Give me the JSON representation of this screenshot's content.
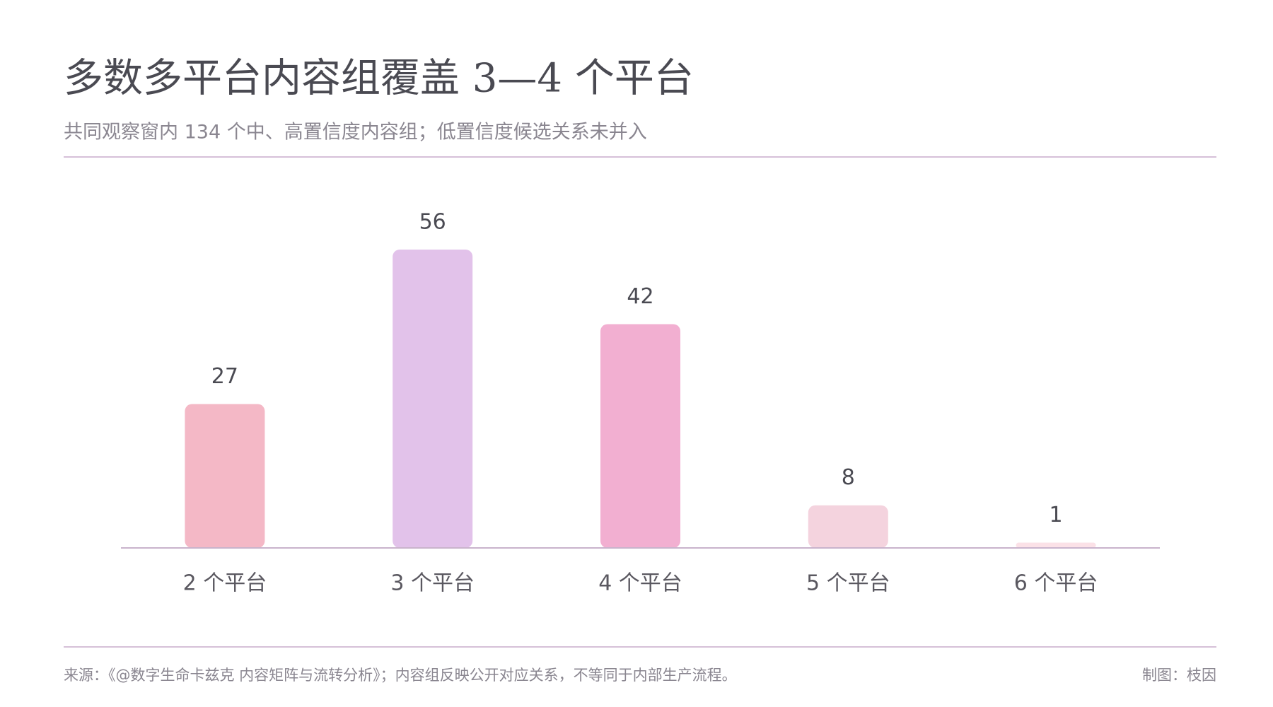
{
  "chart_data": {
    "type": "bar",
    "title": "多数多平台内容组覆盖 3—4 个平台",
    "subtitle": "共同观察窗内 134 个中、高置信度内容组；低置信度候选关系未并入",
    "categories": [
      "2 个平台",
      "3 个平台",
      "4 个平台",
      "5 个平台",
      "6 个平台"
    ],
    "values": [
      27,
      56,
      42,
      8,
      1
    ],
    "colors": [
      "#f4b8c6",
      "#e2c2ea",
      "#f2afd1",
      "#f4d3de",
      "#fbe1e7"
    ],
    "source": "来源：《@数字生命卡兹克 内容矩阵与流转分析》；内容组反映公开对应关系，不等同于内部生产流程。",
    "credit": "制图：枝因"
  }
}
